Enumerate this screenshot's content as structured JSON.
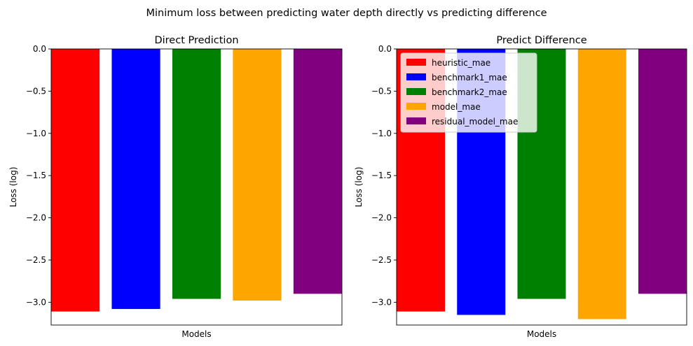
{
  "figure": {
    "suptitle": "Minimum loss between predicting water depth directly vs predicting difference"
  },
  "chart_data": [
    {
      "type": "bar",
      "title": "Direct Prediction",
      "xlabel": "Models",
      "ylabel": "Loss (log)",
      "ylim": [
        -3.27,
        0.0
      ],
      "yticks": [
        0.0,
        -0.5,
        -1.0,
        -1.5,
        -2.0,
        -2.5,
        -3.0
      ],
      "ytick_labels": [
        "0.0",
        "−0.5",
        "−1.0",
        "−1.5",
        "−2.0",
        "−2.5",
        "−3.0"
      ],
      "grid": false,
      "legend": null,
      "categories": [
        "heuristic_mae",
        "benchmark1_mae",
        "benchmark2_mae",
        "model_mae",
        "residual_model_mae"
      ],
      "values": [
        -3.11,
        -3.08,
        -2.96,
        -2.98,
        -2.9
      ],
      "colors": [
        "#ff0000",
        "#0000ff",
        "#008000",
        "#ffa500",
        "#800080"
      ]
    },
    {
      "type": "bar",
      "title": "Predict Difference",
      "xlabel": "Models",
      "ylabel": "Loss (log)",
      "ylim": [
        -3.27,
        0.0
      ],
      "yticks": [
        0.0,
        -0.5,
        -1.0,
        -1.5,
        -2.0,
        -2.5,
        -3.0
      ],
      "ytick_labels": [
        "0.0",
        "−0.5",
        "−1.0",
        "−1.5",
        "−2.0",
        "−2.5",
        "−3.0"
      ],
      "grid": false,
      "legend": "top-left",
      "categories": [
        "heuristic_mae",
        "benchmark1_mae",
        "benchmark2_mae",
        "model_mae",
        "residual_model_mae"
      ],
      "values": [
        -3.11,
        -3.15,
        -2.96,
        -3.2,
        -2.9
      ],
      "colors": [
        "#ff0000",
        "#0000ff",
        "#008000",
        "#ffa500",
        "#800080"
      ]
    }
  ]
}
